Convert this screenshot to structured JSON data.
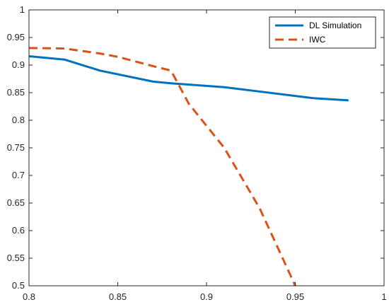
{
  "chart_data": {
    "type": "line",
    "title": "",
    "xlabel": "",
    "ylabel": "",
    "xlim": [
      0.8,
      1.0
    ],
    "ylim": [
      0.5,
      1.0
    ],
    "xticks": [
      0.8,
      0.85,
      0.9,
      0.95,
      1.0
    ],
    "xtick_labels": [
      "0.8",
      "0.85",
      "0.9",
      "0.95",
      "1"
    ],
    "yticks": [
      0.5,
      0.55,
      0.6,
      0.65,
      0.7,
      0.75,
      0.8,
      0.85,
      0.9,
      0.95,
      1.0
    ],
    "ytick_labels": [
      "0.5",
      "0.55",
      "0.6",
      "0.65",
      "0.7",
      "0.75",
      "0.8",
      "0.85",
      "0.9",
      "0.95",
      "1"
    ],
    "grid": false,
    "legend_position": "top-right",
    "series": [
      {
        "name": "DL Simulation",
        "color": "#0072BD",
        "style": "solid",
        "x": [
          0.8,
          0.82,
          0.84,
          0.87,
          0.88,
          0.91,
          0.93,
          0.96,
          0.98
        ],
        "y": [
          0.916,
          0.91,
          0.89,
          0.87,
          0.867,
          0.86,
          0.852,
          0.84,
          0.836
        ]
      },
      {
        "name": "IWC",
        "color": "#D95319",
        "style": "dashed",
        "x": [
          0.8,
          0.82,
          0.84,
          0.85,
          0.87,
          0.88,
          0.89,
          0.91,
          0.93,
          0.95
        ],
        "y": [
          0.931,
          0.93,
          0.921,
          0.915,
          0.898,
          0.89,
          0.83,
          0.75,
          0.64,
          0.5
        ]
      }
    ]
  }
}
